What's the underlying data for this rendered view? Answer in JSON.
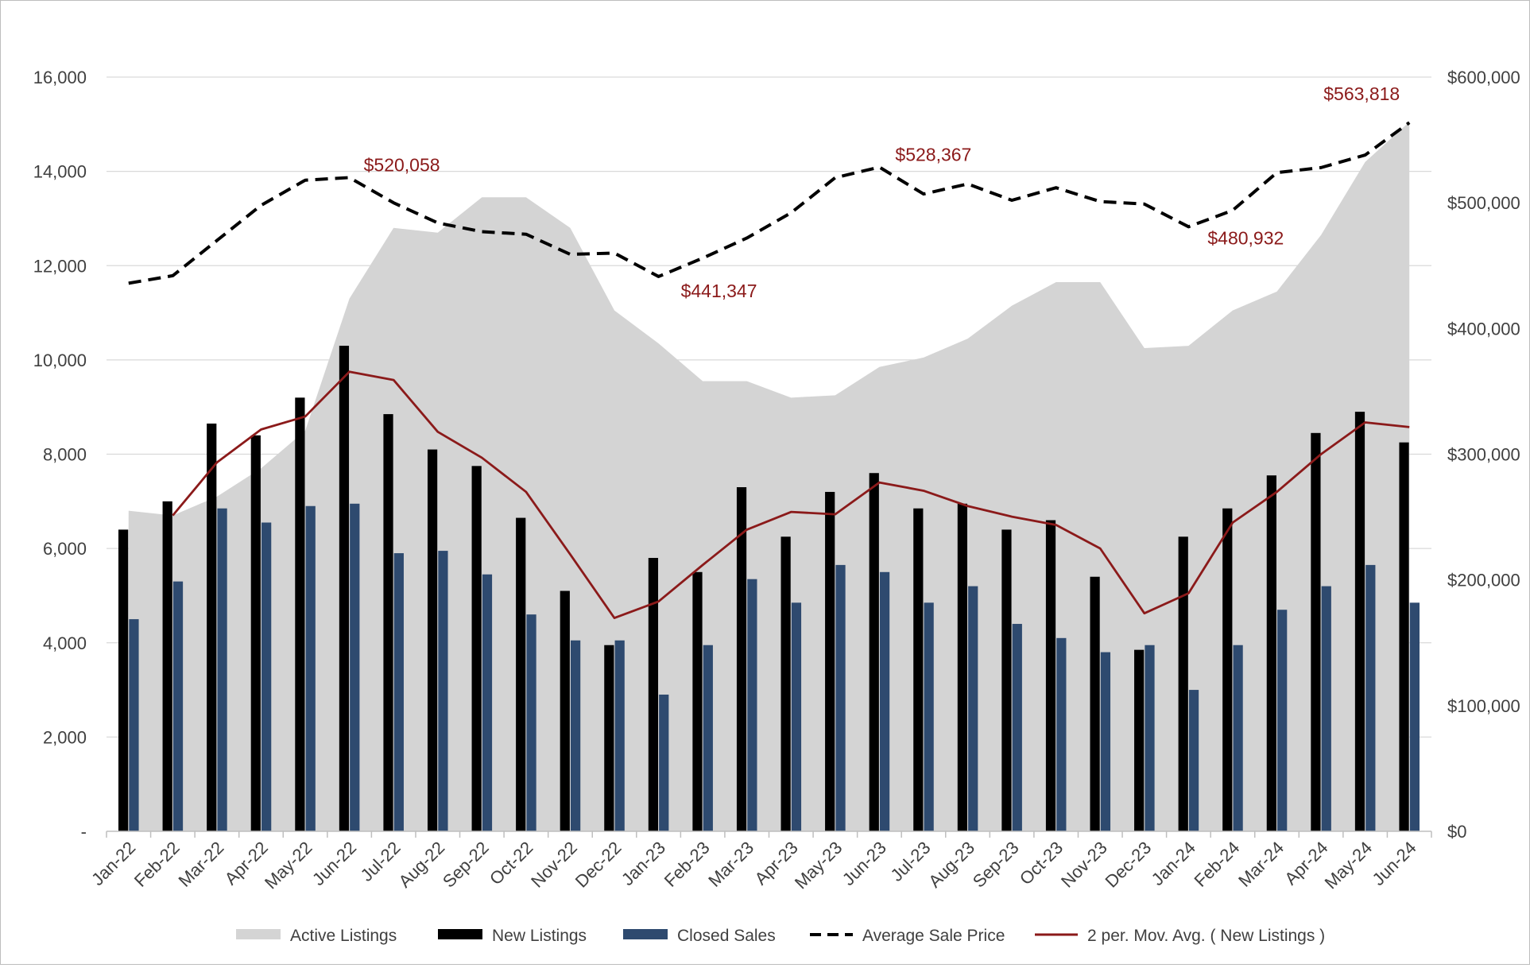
{
  "chart_data": {
    "type": "combo",
    "title": "",
    "categories": [
      "Jan-22",
      "Feb-22",
      "Mar-22",
      "Apr-22",
      "May-22",
      "Jun-22",
      "Jul-22",
      "Aug-22",
      "Sep-22",
      "Oct-22",
      "Nov-22",
      "Dec-22",
      "Jan-23",
      "Feb-23",
      "Mar-23",
      "Apr-23",
      "May-23",
      "Jun-23",
      "Jul-23",
      "Aug-23",
      "Sep-23",
      "Oct-23",
      "Nov-23",
      "Dec-23",
      "Jan-24",
      "Feb-24",
      "Mar-24",
      "Apr-24",
      "May-24",
      "Jun-24"
    ],
    "left_axis": {
      "ylim": [
        0,
        16000
      ],
      "ticks": [
        0,
        2000,
        4000,
        6000,
        8000,
        10000,
        12000,
        14000,
        16000
      ],
      "tick_labels": [
        "-",
        "2,000",
        "4,000",
        "6,000",
        "8,000",
        "10,000",
        "12,000",
        "14,000",
        "16,000"
      ]
    },
    "right_axis": {
      "ylim": [
        0,
        600000
      ],
      "ticks": [
        0,
        100000,
        200000,
        300000,
        400000,
        500000,
        600000
      ],
      "tick_labels": [
        "$0",
        "$100,000",
        "$200,000",
        "$300,000",
        "$400,000",
        "$500,000",
        "$600,000"
      ]
    },
    "grid": true,
    "legend_position": "bottom",
    "series": [
      {
        "name": "Active Listings",
        "type": "area",
        "axis": "left",
        "color": "#d4d4d4",
        "values": [
          6800,
          6700,
          7100,
          7700,
          8500,
          11300,
          12800,
          12700,
          13450,
          13450,
          12800,
          11050,
          10350,
          9550,
          9550,
          9200,
          9250,
          9850,
          10050,
          10450,
          11150,
          11650,
          11650,
          10250,
          10300,
          11050,
          11450,
          12650,
          14200,
          15050
        ]
      },
      {
        "name": "New Listings",
        "type": "bar",
        "axis": "left",
        "color": "#000000",
        "values": [
          6400,
          7000,
          8650,
          8400,
          9200,
          10300,
          8850,
          8100,
          7750,
          6650,
          5100,
          3950,
          5800,
          5500,
          7300,
          6250,
          7200,
          7600,
          6850,
          6950,
          6400,
          6600,
          5400,
          3850,
          6250,
          6850,
          7550,
          8450,
          8900,
          8250
        ]
      },
      {
        "name": "Closed Sales",
        "type": "bar",
        "axis": "left",
        "color": "#2e4a6f",
        "values": [
          4500,
          5300,
          6850,
          6550,
          6900,
          6950,
          5900,
          5950,
          5450,
          4600,
          4050,
          4050,
          2900,
          3950,
          5350,
          4850,
          5650,
          5500,
          4850,
          5200,
          4400,
          4100,
          3800,
          3950,
          3000,
          3950,
          4700,
          5200,
          5650,
          4850
        ]
      },
      {
        "name": "Average Sale Price",
        "type": "line",
        "axis": "right",
        "color": "#000000",
        "dash": true,
        "values": [
          436000,
          442000,
          470000,
          498000,
          518000,
          520058,
          500000,
          484000,
          477000,
          475000,
          459000,
          460000,
          441347,
          456000,
          472000,
          492000,
          520000,
          528367,
          507000,
          515000,
          502000,
          512000,
          501000,
          499000,
          480932,
          494000,
          524000,
          528000,
          538000,
          563818
        ]
      },
      {
        "name": "2 per. Mov. Avg. ( New Listings )",
        "type": "line",
        "axis": "left",
        "color": "#8b1a1a",
        "dash": false,
        "values": [
          null,
          6700,
          7825,
          8525,
          8800,
          9750,
          9575,
          8475,
          7925,
          7200,
          5875,
          4525,
          4875,
          5650,
          6400,
          6775,
          6725,
          7400,
          7225,
          6900,
          6675,
          6500,
          6000,
          4625,
          5050,
          6550,
          7200,
          8000,
          8675,
          8575
        ]
      }
    ],
    "annotations": [
      {
        "label": "$520,058",
        "category": "Jun-22",
        "value": 520058,
        "axis": "right"
      },
      {
        "label": "$441,347",
        "category": "Jan-23",
        "value": 441347,
        "axis": "right"
      },
      {
        "label": "$528,367",
        "category": "Jun-23",
        "value": 528367,
        "axis": "right"
      },
      {
        "label": "$480,932",
        "category": "Jan-24",
        "value": 480932,
        "axis": "right"
      },
      {
        "label": "$563,818",
        "category": "Jun-24",
        "value": 563818,
        "axis": "right"
      }
    ],
    "legend": [
      {
        "name": "Active Listings",
        "symbol": "area",
        "color": "#d4d4d4"
      },
      {
        "name": "New Listings",
        "symbol": "bar",
        "color": "#000000"
      },
      {
        "name": "Closed Sales",
        "symbol": "bar",
        "color": "#2e4a6f"
      },
      {
        "name": "Average Sale Price",
        "symbol": "dash-line",
        "color": "#000000"
      },
      {
        "name": "2 per. Mov. Avg. ( New Listings )",
        "symbol": "line",
        "color": "#8b1a1a"
      }
    ]
  }
}
